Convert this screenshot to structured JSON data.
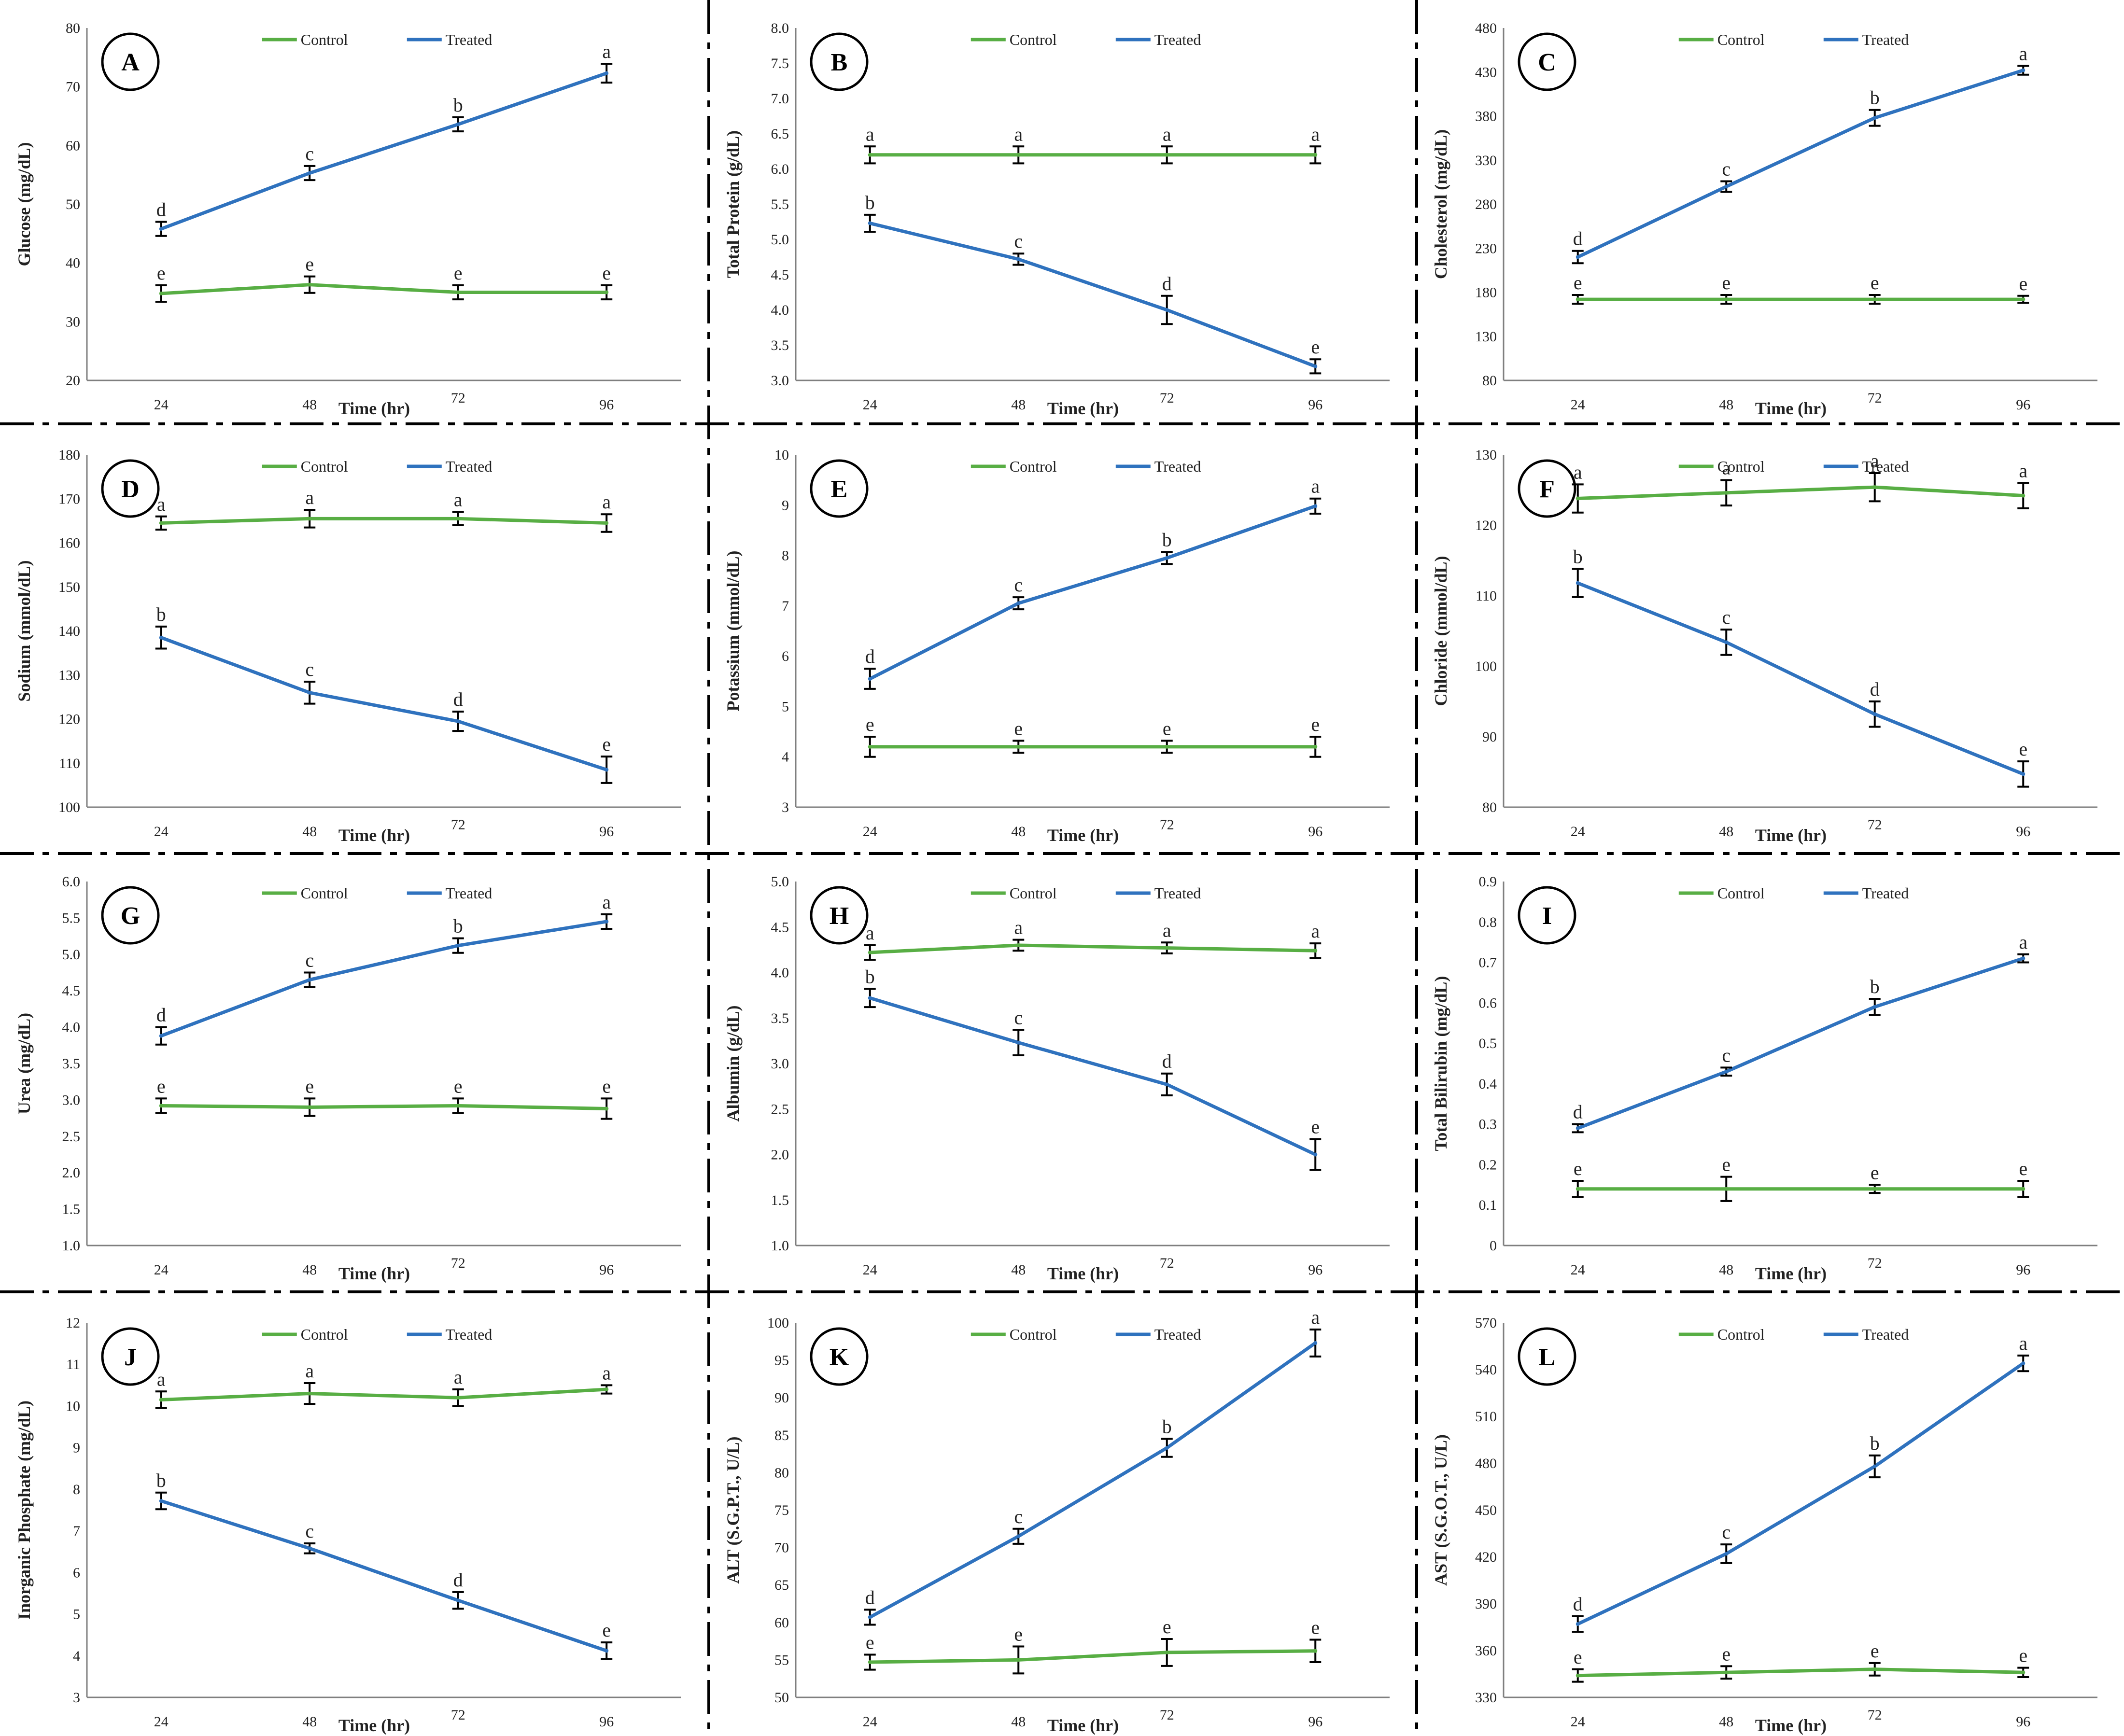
{
  "colors": {
    "control": "#58AE44",
    "treated": "#2F72BE",
    "axis": "#7f7f7f",
    "separator": "#000000"
  },
  "chart_data": [
    {
      "panel": "A",
      "type": "line",
      "ylabel": "Glucose  (mg/dL)",
      "xlabel": "Time (hr)",
      "ylim": [
        20,
        80
      ],
      "yticks": [
        "20",
        "30",
        "40",
        "50",
        "60",
        "70",
        "80"
      ],
      "categories": [
        "24",
        "48",
        "72",
        "96"
      ],
      "legend": [
        "Control",
        "Treated"
      ],
      "series": [
        {
          "name": "Control",
          "values": [
            34.8,
            36.3,
            35.0,
            35.0
          ],
          "errors": [
            1.4,
            1.4,
            1.2,
            1.2
          ],
          "letters": [
            "e",
            "e",
            "e",
            "e"
          ]
        },
        {
          "name": "Treated",
          "values": [
            45.8,
            55.3,
            63.6,
            72.3
          ],
          "errors": [
            1.2,
            1.2,
            1.2,
            1.6
          ],
          "letters": [
            "d",
            "c",
            "b",
            "a"
          ]
        }
      ]
    },
    {
      "panel": "B",
      "type": "line",
      "ylabel": "Total Protein (g/dL)",
      "xlabel": "Time (hr)",
      "ylim": [
        3.0,
        8.0
      ],
      "yticks": [
        "3.0",
        "3.5",
        "4.0",
        "4.5",
        "5.0",
        "5.5",
        "6.0",
        "6.5",
        "7.0",
        "7.5",
        "8.0"
      ],
      "categories": [
        "24",
        "48",
        "72",
        "96"
      ],
      "legend": [
        "Control",
        "Treated"
      ],
      "series": [
        {
          "name": "Control",
          "values": [
            6.2,
            6.2,
            6.2,
            6.2
          ],
          "errors": [
            0.12,
            0.12,
            0.12,
            0.12
          ],
          "letters": [
            "a",
            "a",
            "a",
            "a"
          ]
        },
        {
          "name": "Treated",
          "values": [
            5.23,
            4.72,
            4.0,
            3.2
          ],
          "errors": [
            0.12,
            0.08,
            0.2,
            0.1
          ],
          "letters": [
            "b",
            "c",
            "d",
            "e"
          ]
        }
      ]
    },
    {
      "panel": "C",
      "type": "line",
      "ylabel": "Cholesterol (mg/dL)",
      "xlabel": "Time (hr)",
      "ylim": [
        80,
        480
      ],
      "yticks": [
        "80",
        "130",
        "180",
        "230",
        "280",
        "330",
        "380",
        "430",
        "480"
      ],
      "categories": [
        "24",
        "48",
        "72",
        "96"
      ],
      "legend": [
        "Control",
        "Treated"
      ],
      "series": [
        {
          "name": "Control",
          "values": [
            172,
            172,
            172,
            172
          ],
          "errors": [
            5,
            5,
            5,
            4
          ],
          "letters": [
            "e",
            "e",
            "e",
            "e"
          ]
        },
        {
          "name": "Treated",
          "values": [
            220,
            300,
            378,
            432
          ],
          "errors": [
            7,
            6,
            9,
            5
          ],
          "letters": [
            "d",
            "c",
            "b",
            "a"
          ]
        }
      ]
    },
    {
      "panel": "D",
      "type": "line",
      "ylabel": "Sodium (mmol/dL)",
      "xlabel": "Time (hr)",
      "ylim": [
        100,
        180
      ],
      "yticks": [
        "100",
        "110",
        "120",
        "130",
        "140",
        "150",
        "160",
        "170",
        "180"
      ],
      "categories": [
        "24",
        "48",
        "72",
        "96"
      ],
      "legend": [
        "Control",
        "Treated"
      ],
      "series": [
        {
          "name": "Control",
          "values": [
            164.5,
            165.5,
            165.5,
            164.5
          ],
          "errors": [
            1.5,
            2.0,
            1.5,
            2.0
          ],
          "letters": [
            "a",
            "a",
            "a",
            "a"
          ]
        },
        {
          "name": "Treated",
          "values": [
            138.5,
            126.0,
            119.5,
            108.5
          ],
          "errors": [
            2.5,
            2.5,
            2.2,
            3.0
          ],
          "letters": [
            "b",
            "c",
            "d",
            "e"
          ]
        }
      ]
    },
    {
      "panel": "E",
      "type": "line",
      "ylabel": "Potassium (mmol/dL)",
      "xlabel": "Time (hr)",
      "ylim": [
        3,
        10
      ],
      "yticks": [
        "3",
        "4",
        "5",
        "6",
        "7",
        "8",
        "9",
        "10"
      ],
      "categories": [
        "24",
        "48",
        "72",
        "96"
      ],
      "legend": [
        "Control",
        "Treated"
      ],
      "series": [
        {
          "name": "Control",
          "values": [
            4.2,
            4.2,
            4.2,
            4.2
          ],
          "errors": [
            0.2,
            0.12,
            0.12,
            0.2
          ],
          "letters": [
            "e",
            "e",
            "e",
            "e"
          ]
        },
        {
          "name": "Treated",
          "values": [
            5.55,
            7.05,
            7.95,
            8.98
          ],
          "errors": [
            0.2,
            0.12,
            0.12,
            0.15
          ],
          "letters": [
            "d",
            "c",
            "b",
            "a"
          ]
        }
      ]
    },
    {
      "panel": "F",
      "type": "line",
      "ylabel": "Chloride (mmol/dL)",
      "xlabel": "Time (hr)",
      "ylim": [
        80,
        130
      ],
      "yticks": [
        "80",
        "90",
        "100",
        "110",
        "120",
        "130"
      ],
      "categories": [
        "24",
        "48",
        "72",
        "96"
      ],
      "legend": [
        "Control",
        "Treated"
      ],
      "series": [
        {
          "name": "Control",
          "values": [
            123.8,
            124.6,
            125.4,
            124.2
          ],
          "errors": [
            2.0,
            1.8,
            2.0,
            1.8
          ],
          "letters": [
            "a",
            "a",
            "a",
            "a"
          ]
        },
        {
          "name": "Treated",
          "values": [
            111.8,
            103.4,
            93.2,
            84.7
          ],
          "errors": [
            2.0,
            1.8,
            1.8,
            1.8
          ],
          "letters": [
            "b",
            "c",
            "d",
            "e"
          ]
        }
      ]
    },
    {
      "panel": "G",
      "type": "line",
      "ylabel": "Urea (mg/dL)",
      "xlabel": "Time (hr)",
      "ylim": [
        1.0,
        6.0
      ],
      "yticks": [
        "1.0",
        "1.5",
        "2.0",
        "2.5",
        "3.0",
        "3.5",
        "4.0",
        "4.5",
        "5.0",
        "5.5",
        "6.0"
      ],
      "categories": [
        "24",
        "48",
        "72",
        "96"
      ],
      "legend": [
        "Control",
        "Treated"
      ],
      "series": [
        {
          "name": "Control",
          "values": [
            2.92,
            2.9,
            2.92,
            2.88
          ],
          "errors": [
            0.1,
            0.12,
            0.1,
            0.14
          ],
          "letters": [
            "e",
            "e",
            "e",
            "e"
          ]
        },
        {
          "name": "Treated",
          "values": [
            3.88,
            4.65,
            5.12,
            5.45
          ],
          "errors": [
            0.12,
            0.1,
            0.1,
            0.1
          ],
          "letters": [
            "d",
            "c",
            "b",
            "a"
          ]
        }
      ]
    },
    {
      "panel": "H",
      "type": "line",
      "ylabel": "Albumin (g/dL)",
      "xlabel": "Time (hr)",
      "ylim": [
        1.0,
        5.0
      ],
      "yticks": [
        "1.0",
        "1.5",
        "2.0",
        "2.5",
        "3.0",
        "3.5",
        "4.0",
        "4.5",
        "5.0"
      ],
      "categories": [
        "24",
        "48",
        "72",
        "96"
      ],
      "legend": [
        "Control",
        "Treated"
      ],
      "series": [
        {
          "name": "Control",
          "values": [
            4.22,
            4.3,
            4.27,
            4.24
          ],
          "errors": [
            0.08,
            0.06,
            0.06,
            0.08
          ],
          "letters": [
            "a",
            "a",
            "a",
            "a"
          ]
        },
        {
          "name": "Treated",
          "values": [
            3.72,
            3.23,
            2.77,
            2.0
          ],
          "errors": [
            0.1,
            0.14,
            0.12,
            0.17
          ],
          "letters": [
            "b",
            "c",
            "d",
            "e"
          ]
        }
      ]
    },
    {
      "panel": "I",
      "type": "line",
      "ylabel": "Total Bilirubin (mg/dL)",
      "xlabel": "Time (hr)",
      "ylim": [
        0,
        0.9
      ],
      "yticks": [
        "0",
        "0.1",
        "0.2",
        "0.3",
        "0.4",
        "0.5",
        "0.6",
        "0.7",
        "0.8",
        "0.9"
      ],
      "categories": [
        "24",
        "48",
        "72",
        "96"
      ],
      "legend": [
        "Control",
        "Treated"
      ],
      "series": [
        {
          "name": "Control",
          "values": [
            0.14,
            0.14,
            0.14,
            0.14
          ],
          "errors": [
            0.02,
            0.03,
            0.01,
            0.02
          ],
          "letters": [
            "e",
            "e",
            "e",
            "e"
          ]
        },
        {
          "name": "Treated",
          "values": [
            0.29,
            0.43,
            0.59,
            0.71
          ],
          "errors": [
            0.01,
            0.01,
            0.02,
            0.01
          ],
          "letters": [
            "d",
            "c",
            "b",
            "a"
          ]
        }
      ]
    },
    {
      "panel": "J",
      "type": "line",
      "ylabel": "Inorganic Phosphate (mg/dL)",
      "xlabel": "Time (hr)",
      "ylim": [
        3,
        12
      ],
      "yticks": [
        "3",
        "4",
        "5",
        "6",
        "7",
        "8",
        "9",
        "10",
        "11",
        "12"
      ],
      "categories": [
        "24",
        "48",
        "72",
        "96"
      ],
      "legend": [
        "Control",
        "Treated"
      ],
      "series": [
        {
          "name": "Control",
          "values": [
            10.15,
            10.3,
            10.2,
            10.4
          ],
          "errors": [
            0.2,
            0.25,
            0.2,
            0.1
          ],
          "letters": [
            "a",
            "a",
            "a",
            "a"
          ]
        },
        {
          "name": "Treated",
          "values": [
            7.72,
            6.58,
            5.33,
            4.12
          ],
          "errors": [
            0.2,
            0.12,
            0.2,
            0.2
          ],
          "letters": [
            "b",
            "c",
            "d",
            "e"
          ]
        }
      ]
    },
    {
      "panel": "K",
      "type": "line",
      "ylabel": "ALT (S.G.P.T., U/L)",
      "xlabel": "Time (hr)",
      "ylim": [
        50,
        100
      ],
      "yticks": [
        "50",
        "55",
        "60",
        "65",
        "70",
        "75",
        "80",
        "85",
        "90",
        "95",
        "100"
      ],
      "categories": [
        "24",
        "48",
        "72",
        "96"
      ],
      "legend": [
        "Control",
        "Treated"
      ],
      "series": [
        {
          "name": "Control",
          "values": [
            54.7,
            55.0,
            56.0,
            56.2
          ],
          "errors": [
            1.0,
            1.8,
            1.8,
            1.5
          ],
          "letters": [
            "e",
            "e",
            "e",
            "e"
          ]
        },
        {
          "name": "Treated",
          "values": [
            60.7,
            71.5,
            83.3,
            97.3
          ],
          "errors": [
            1.0,
            1.0,
            1.2,
            1.8
          ],
          "letters": [
            "d",
            "c",
            "b",
            "a"
          ]
        }
      ]
    },
    {
      "panel": "L",
      "type": "line",
      "ylabel": "AST (S.G.O.T., U/L)",
      "xlabel": "Time (hr)",
      "ylim": [
        330,
        570
      ],
      "yticks": [
        "330",
        "360",
        "390",
        "420",
        "450",
        "480",
        "510",
        "540",
        "570"
      ],
      "categories": [
        "24",
        "48",
        "72",
        "96"
      ],
      "legend": [
        "Control",
        "Treated"
      ],
      "series": [
        {
          "name": "Control",
          "values": [
            344,
            346,
            348,
            346
          ],
          "errors": [
            4,
            4,
            4,
            3
          ],
          "letters": [
            "e",
            "e",
            "e",
            "e"
          ]
        },
        {
          "name": "Treated",
          "values": [
            377,
            422,
            478,
            544
          ],
          "errors": [
            5,
            6,
            7,
            5
          ],
          "letters": [
            "d",
            "c",
            "b",
            "a"
          ]
        }
      ]
    }
  ]
}
